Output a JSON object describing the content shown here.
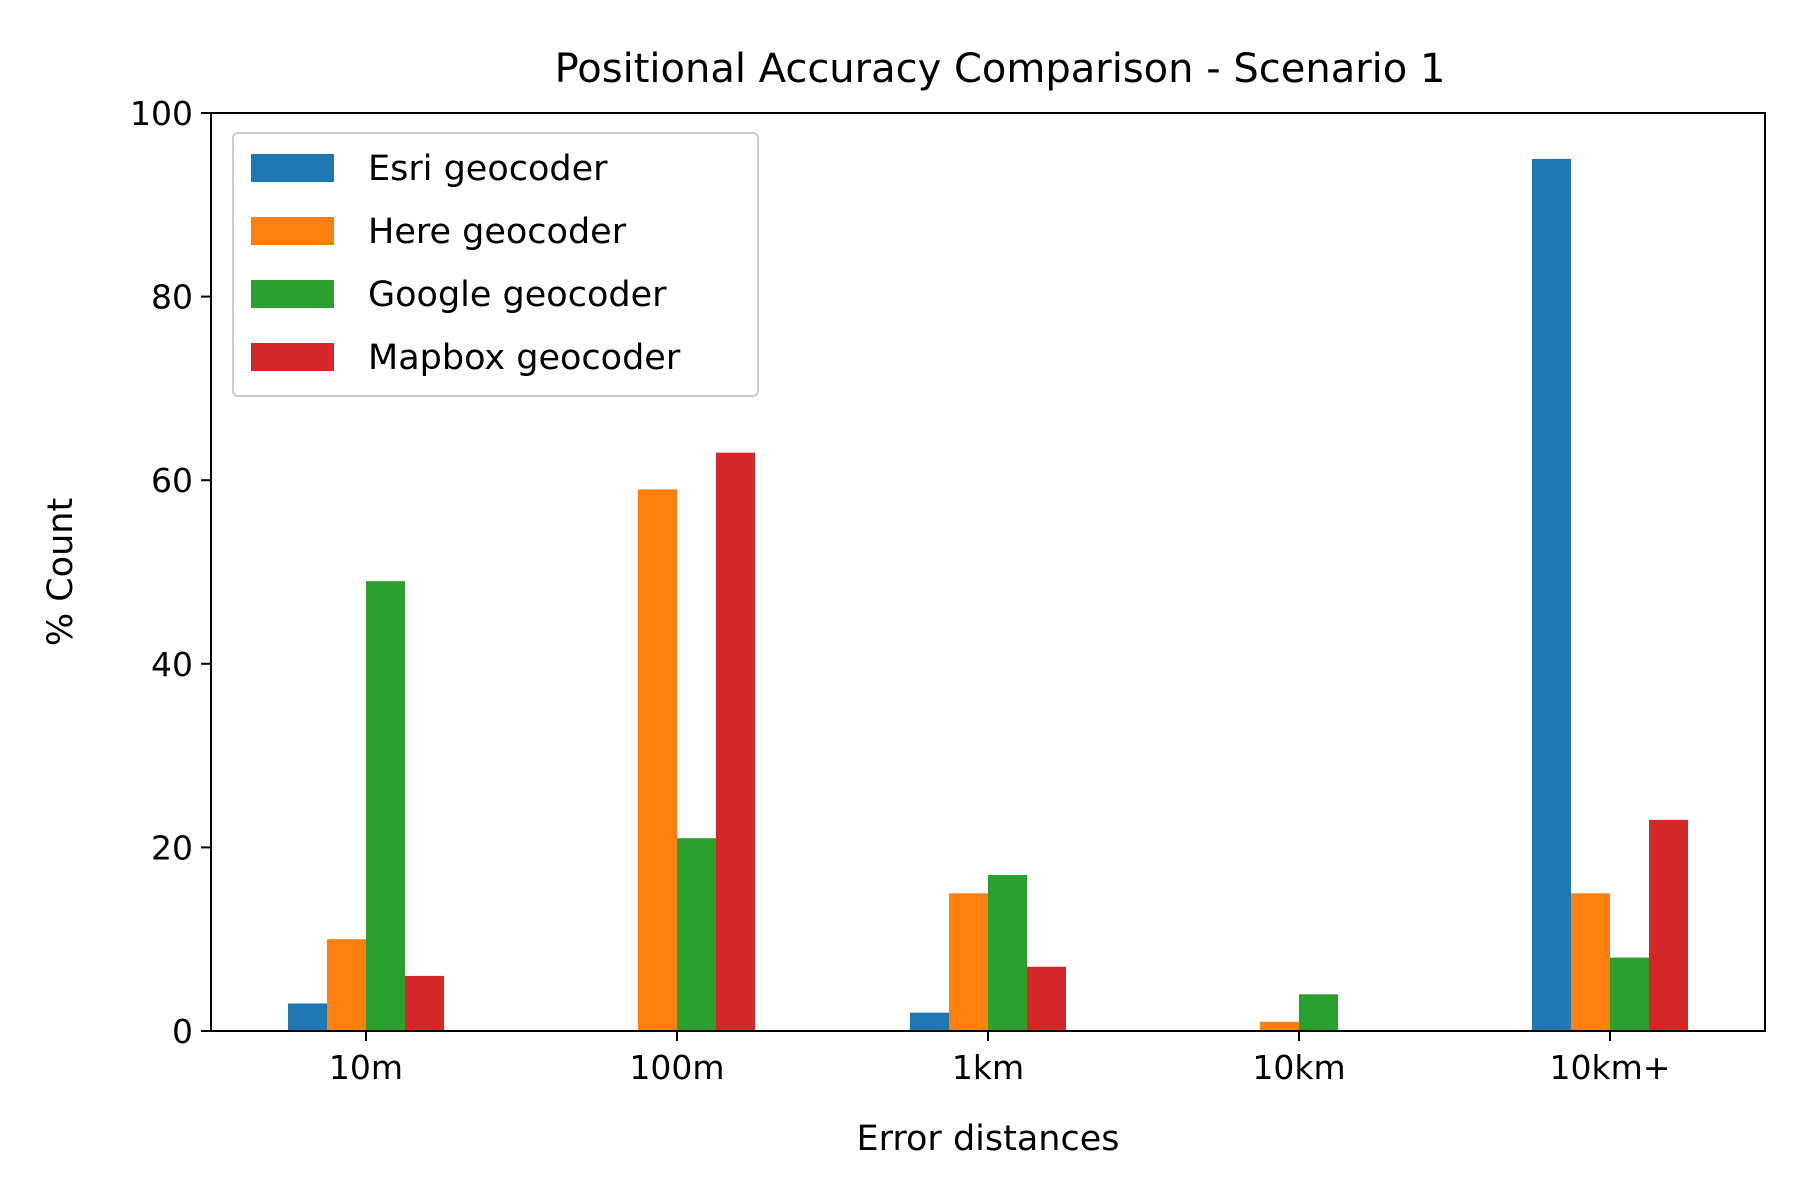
{
  "chart_data": {
    "type": "bar",
    "title": "Positional Accuracy Comparison - Scenario 1",
    "xlabel": "Error distances",
    "ylabel": "% Count",
    "categories": [
      "10m",
      "100m",
      "1km",
      "10km",
      "10km+"
    ],
    "ylim": [
      0,
      100
    ],
    "yticks": [
      "0",
      "20",
      "40",
      "60",
      "80",
      "100"
    ],
    "grid": false,
    "legend_position": "top-left",
    "series": [
      {
        "name": "Esri geocoder",
        "color": "#1f77b4",
        "values": [
          3,
          0,
          2,
          0,
          95
        ]
      },
      {
        "name": "Here geocoder",
        "color": "#ff7f0e",
        "values": [
          10,
          59,
          15,
          1,
          15
        ]
      },
      {
        "name": "Google geocoder",
        "color": "#2ca02c",
        "values": [
          49,
          21,
          17,
          4,
          8
        ]
      },
      {
        "name": "Mapbox geocoder",
        "color": "#d62728",
        "values": [
          6,
          63,
          7,
          0,
          23
        ]
      }
    ]
  }
}
